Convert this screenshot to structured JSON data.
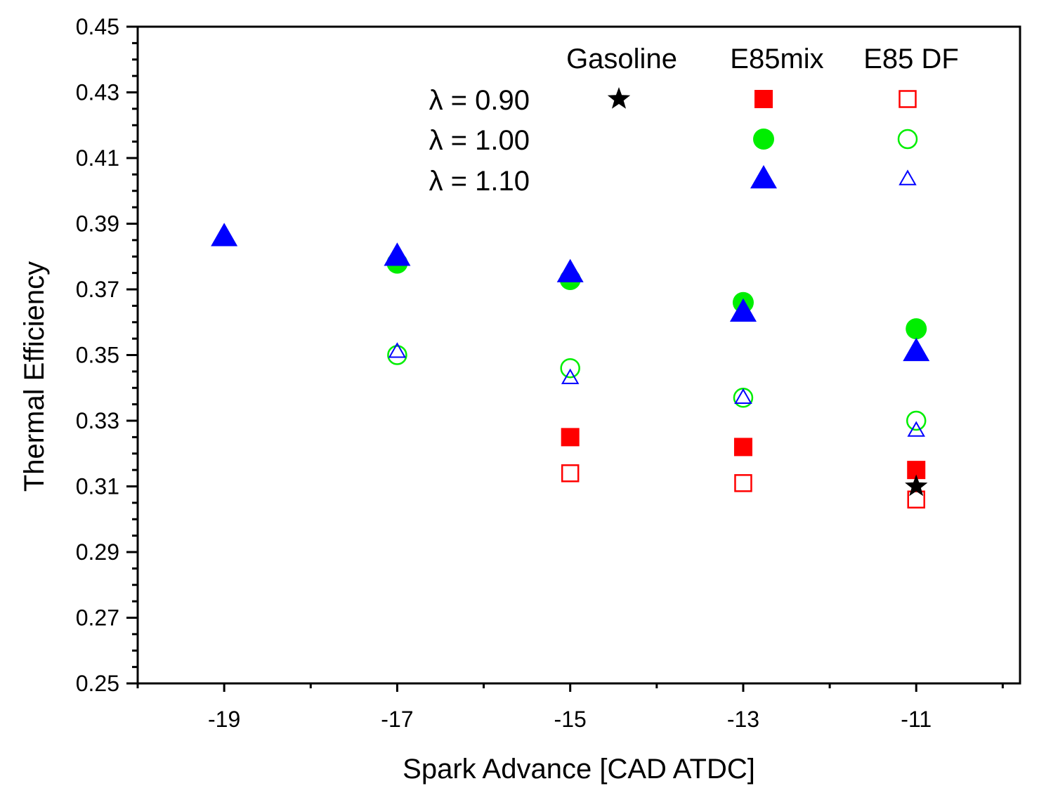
{
  "chart_data": {
    "type": "scatter",
    "title": "",
    "xlabel": "Spark Advance [CAD ATDC]",
    "ylabel": "Thermal Efficiency",
    "xlim": [
      -20.0,
      -9.8
    ],
    "ylim": [
      0.25,
      0.45
    ],
    "xticks": [
      -19,
      -17,
      -15,
      -13,
      -11
    ],
    "xtick_labels": [
      "-19",
      "-17",
      "-15",
      "-13",
      "-11"
    ],
    "yticks": [
      0.25,
      0.27,
      0.29,
      0.31,
      0.33,
      0.35,
      0.37,
      0.39,
      0.41,
      0.43,
      0.45
    ],
    "ytick_labels": [
      "0.25",
      "0.27",
      "0.29",
      "0.31",
      "0.33",
      "0.35",
      "0.37",
      "0.39",
      "0.41",
      "0.43",
      "0.45"
    ],
    "grid": false,
    "legend": {
      "placement": "top-right",
      "column_headers": [
        "Gasoline",
        "E85mix",
        "E85 DF"
      ],
      "row_labels": [
        "λ = 0.90",
        "λ = 1.00",
        "λ = 1.10"
      ]
    },
    "series": [
      {
        "name": "Gasoline λ = 0.90",
        "marker": "star",
        "filled": true,
        "color": "#000000",
        "x": [
          -11
        ],
        "y": [
          0.31
        ]
      },
      {
        "name": "E85mix λ = 0.90",
        "marker": "square",
        "filled": true,
        "color": "#ff0000",
        "x": [
          -15,
          -13,
          -11
        ],
        "y": [
          0.325,
          0.322,
          0.315
        ]
      },
      {
        "name": "E85 DF λ = 0.90",
        "marker": "square",
        "filled": false,
        "color": "#ff0000",
        "x": [
          -15,
          -13,
          -11
        ],
        "y": [
          0.314,
          0.311,
          0.306
        ]
      },
      {
        "name": "E85mix λ = 1.00",
        "marker": "circle",
        "filled": true,
        "color": "#00ee00",
        "x": [
          -17,
          -15,
          -13,
          -11
        ],
        "y": [
          0.378,
          0.373,
          0.366,
          0.358
        ]
      },
      {
        "name": "E85 DF λ = 1.00",
        "marker": "circle",
        "filled": false,
        "color": "#00ee00",
        "x": [
          -17,
          -15,
          -13,
          -11
        ],
        "y": [
          0.35,
          0.346,
          0.337,
          0.33
        ]
      },
      {
        "name": "E85mix λ = 1.10",
        "marker": "triangle",
        "filled": true,
        "color": "#0000ff",
        "x": [
          -19,
          -17,
          -15,
          -13,
          -11
        ],
        "y": [
          0.386,
          0.38,
          0.375,
          0.363,
          0.351
        ]
      },
      {
        "name": "E85 DF λ = 1.10",
        "marker": "triangle",
        "filled": false,
        "color": "#0000ff",
        "x": [
          -17,
          -15,
          -13,
          -11
        ],
        "y": [
          0.351,
          0.343,
          0.337,
          0.327
        ]
      }
    ]
  }
}
